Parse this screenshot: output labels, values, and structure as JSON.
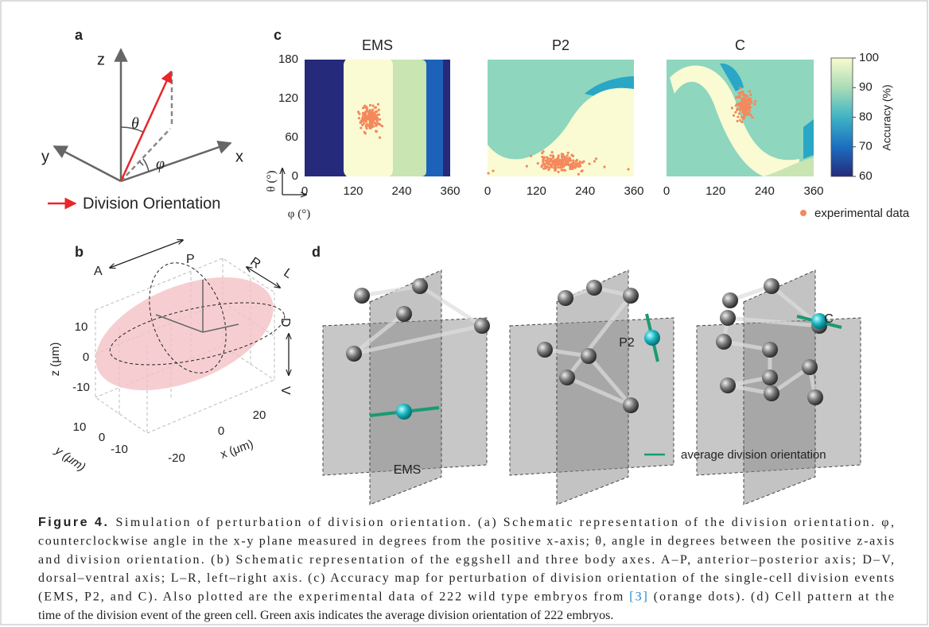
{
  "panel_a": {
    "label": "a",
    "z": "z",
    "y": "y",
    "x": "x",
    "theta": "θ",
    "phi": "φ",
    "legend": "Division Orientation"
  },
  "panel_c": {
    "label": "c",
    "titles": [
      "EMS",
      "P2",
      "C"
    ],
    "yticks": [
      "180",
      "120",
      "60",
      "0"
    ],
    "xticks": [
      "0",
      "120",
      "240",
      "360"
    ],
    "ylabel": "θ (°)",
    "xlabel": "φ (°)",
    "colorbar_ticks": [
      "100",
      "90",
      "80",
      "70",
      "60"
    ],
    "colorbar_label": "Accuracy (%)",
    "legend": "experimental data"
  },
  "panel_b": {
    "label": "b",
    "axes": {
      "A": "A",
      "P": "P",
      "R": "R",
      "L": "L",
      "D": "D",
      "V": "V"
    },
    "zticks": [
      "10",
      "0",
      "-10"
    ],
    "zlabel": "z (μm)",
    "yticks": [
      "10",
      "0",
      "-10"
    ],
    "ylabel": "y (μm)",
    "xticks": [
      "-20",
      "0",
      "20"
    ],
    "xlabel": "x (μm)"
  },
  "panel_d": {
    "label": "d",
    "cells": [
      "EMS",
      "P2",
      "C"
    ],
    "legend": "average division orientation"
  },
  "caption": {
    "label": "Figure 4.",
    "lines": [
      "Simulation of perturbation of division orientation. (a) Schematic representation of the division orientation. φ,",
      "counterclockwise angle in the x-y plane measured in degrees from the positive x-axis; θ, angle in degrees between the positive z-axis",
      "and division orientation. (b) Schematic representation of the eggshell and three body axes. A–P, anterior–posterior axis; D–V,",
      "dorsal–ventral axis; L–R, left–right axis. (c) Accuracy map for perturbation of division orientation of the single-cell division events",
      "(EMS, P2, and C). Also plotted are the experimental data of 222 wild type embryos from ",
      "time of the division event of the green cell. Green axis indicates the average division orientation of 222 embryos."
    ],
    "ref": "[3]",
    "line5_end": " (orange dots). (d) Cell pattern at the"
  }
}
